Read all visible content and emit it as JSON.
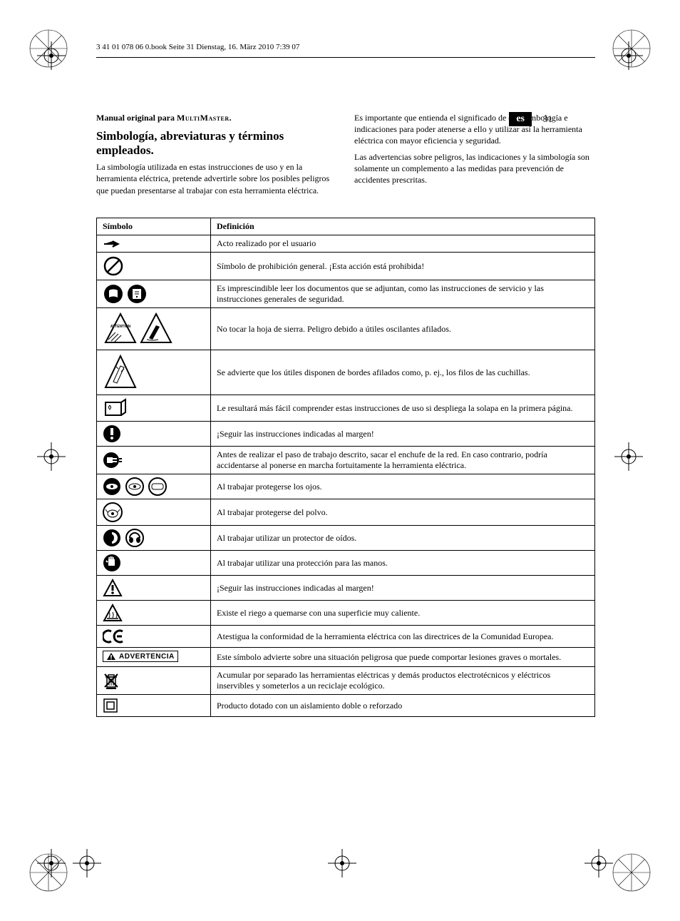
{
  "header_line": "3 41 01 078 06 0.book  Seite 31  Dienstag, 16. März 2010  7:39 07",
  "lang_code": "es",
  "page_number": "31",
  "manual_title_a": "Manual original para ",
  "manual_title_b": "MultiMaster.",
  "section_heading": "Simbología, abreviaturas y términos empleados.",
  "left_para": "La simbología utilizada en estas instrucciones de uso y en la herramienta eléctrica, pretende advertirle sobre los posibles peligros que puedan presentarse al trabajar con esta herramienta eléctrica.",
  "right_para_1": "Es importante que entienda el significado de esta simbología e indicaciones para poder atenerse a ello y utilizar así la herramienta eléctrica con mayor eficiencia y seguridad.",
  "right_para_2": "Las advertencias sobre peligros, las indicaciones y la simbología son solamente un complemento a las medidas para prevención de accidentes prescritas.",
  "table": {
    "columns": [
      "Símbolo",
      "Definición"
    ],
    "rows": [
      {
        "sym": "arrow",
        "def": "Acto realizado por el usuario"
      },
      {
        "sym": "prohibit",
        "def": "Símbolo de prohibición general. ¡Esta acción está prohibida!"
      },
      {
        "sym": "readdocs",
        "def": "Es imprescindible leer los documentos que se adjuntan, como las instrucciones de servicio y las instrucciones generales de seguridad."
      },
      {
        "sym": "nosaw",
        "def": "No tocar la hoja de sierra. Peligro debido a útiles oscilantes afilados."
      },
      {
        "sym": "sharpedges",
        "def": "Se advierte que los útiles disponen de bordes afilados como, p. ej., los filos de las cuchillas."
      },
      {
        "sym": "bookflap",
        "def": "Le resultará más fácil comprender estas instrucciones de uso si despliega la solapa en la primera página."
      },
      {
        "sym": "excircle",
        "def": "¡Seguir las instrucciones indicadas al margen!"
      },
      {
        "sym": "unplug",
        "def": "Antes de realizar el paso de trabajo descrito, sacar el enchufe de la red. En caso contrario, podría accidentarse al ponerse en marcha fortuitamente la herramienta eléctrica."
      },
      {
        "sym": "eyepro",
        "def": "Al trabajar protegerse los ojos."
      },
      {
        "sym": "dustmask",
        "def": "Al trabajar protegerse del polvo."
      },
      {
        "sym": "earpro",
        "def": "Al trabajar utilizar un protector de oídos."
      },
      {
        "sym": "gloves",
        "def": "Al trabajar utilizar una protección para las manos."
      },
      {
        "sym": "warntri",
        "def": "¡Seguir las instrucciones indicadas al margen!"
      },
      {
        "sym": "hot",
        "def": "Existe el riego a quemarse con una superficie muy caliente."
      },
      {
        "sym": "ce",
        "def": "Atestigua la conformidad de la herramienta eléctrica con las directrices de la Comunidad Europea."
      },
      {
        "sym": "advert",
        "def": "Este símbolo advierte sobre una situación peligrosa que puede comportar lesiones graves o mortales."
      },
      {
        "sym": "weee",
        "def": "Acumular por separado las herramientas eléctricas y demás productos electrotécnicos y eléctricos inservibles y someterlos a un reciclaje ecológico."
      },
      {
        "sym": "doubleins",
        "def": "Producto dotado con un aislamiento doble o reforzado"
      }
    ]
  },
  "advert_label": "ADVERTENCIA"
}
